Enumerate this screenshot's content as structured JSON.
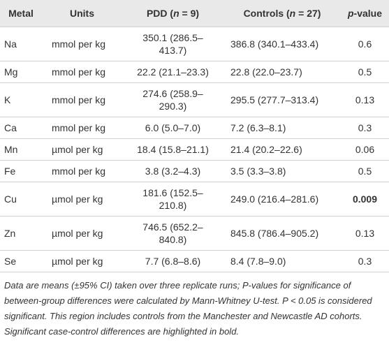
{
  "table": {
    "header": [
      "Metal",
      "Units",
      [
        "PDD (",
        "n",
        " = 9)"
      ],
      [
        "Controls (",
        "n",
        " = 27)"
      ],
      [
        "p",
        "-value"
      ]
    ],
    "rows": [
      [
        "Na",
        "mmol per kg",
        "350.1 (286.5–413.7)",
        "386.8 (340.1–433.4)",
        "0.6"
      ],
      [
        "Mg",
        "mmol per kg",
        "22.2 (21.1–23.3)",
        "22.8 (22.0–23.7)",
        "0.5"
      ],
      [
        "K",
        "mmol per kg",
        "274.6 (258.9–290.3)",
        "295.5 (277.7–313.4)",
        "0.13"
      ],
      [
        "Ca",
        "mmol per kg",
        "6.0 (5.0–7.0)",
        "7.2 (6.3–8.1)",
        "0.3"
      ],
      [
        "Mn",
        "µmol per kg",
        "18.4 (15.8–21.1)",
        "21.4 (20.2–22.6)",
        "0.06"
      ],
      [
        "Fe",
        "mmol per kg",
        "3.8 (3.2–4.3)",
        "3.5 (3.3–3.8)",
        "0.5"
      ],
      [
        "Cu",
        "µmol per kg",
        "181.6 (152.5–210.8)",
        "249.0 (216.4–281.6)",
        "0.009"
      ],
      [
        "Zn",
        "µmol per kg",
        "746.5 (652.2–840.8)",
        "845.8 (786.4–905.2)",
        "0.13"
      ],
      [
        "Se",
        "µmol per kg",
        "7.7 (6.8–8.6)",
        "8.4 (7.8–9.0)",
        "0.3"
      ]
    ],
    "footnote": "Data are means (±95% CI) taken over three replicate runs; P-values for significance of between-group differences were calculated by Mann-Whitney U-test. P < 0.05 is considered significant. This region includes controls from the Manchester and Newcastle AD cohorts. Significant case-control differences are highlighted in bold."
  }
}
